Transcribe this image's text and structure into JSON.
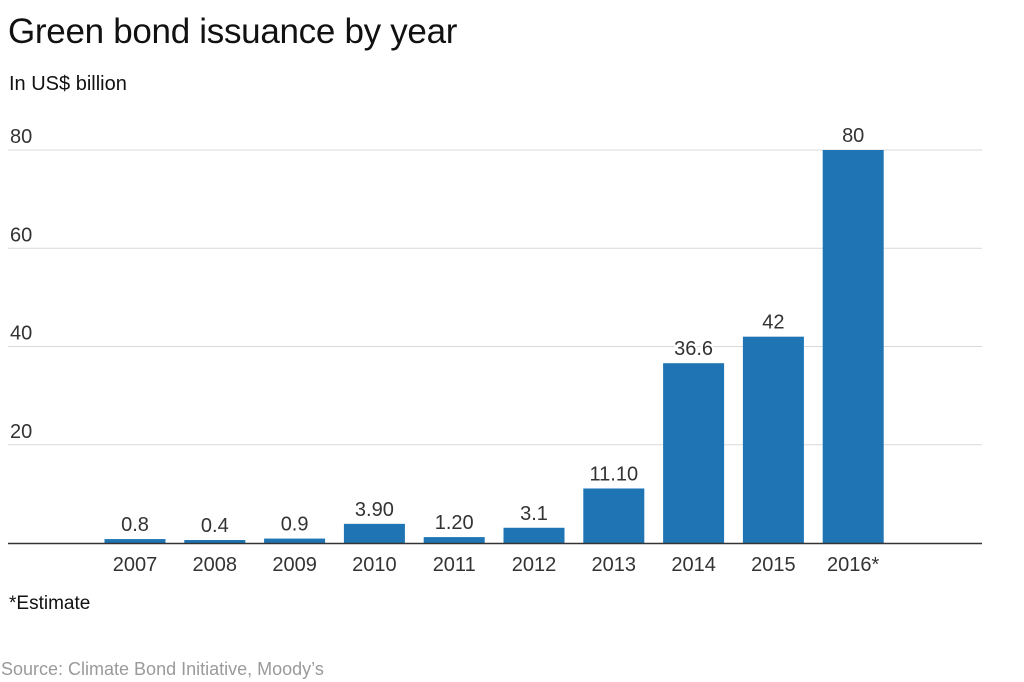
{
  "header": {
    "title": "Green bond issuance by year",
    "subtitle": "In US$ billion"
  },
  "footer": {
    "footnote": "*Estimate",
    "source": "Source: Climate Bond Initiative, Moody’s"
  },
  "colors": {
    "bar": "#1f74b4",
    "gridline": "#d9d9d9",
    "baseline": "#333333"
  },
  "chart_data": {
    "type": "bar",
    "title": "Green bond issuance by year",
    "subtitle": "In US$ billion",
    "xlabel": "",
    "ylabel": "",
    "categories": [
      "2007",
      "2008",
      "2009",
      "2010",
      "2011",
      "2012",
      "2013",
      "2014",
      "2015",
      "2016*"
    ],
    "values": [
      0.8,
      0.4,
      0.9,
      3.9,
      1.2,
      3.1,
      11.1,
      36.6,
      42,
      80
    ],
    "data_labels": [
      "0.8",
      "0.4",
      "0.9",
      "3.90",
      "1.20",
      "3.1",
      "11.10",
      "36.6",
      "42",
      "80"
    ],
    "ylim": [
      0,
      80
    ],
    "yticks": [
      "20",
      "40",
      "60",
      "80"
    ],
    "ytick_values": [
      20,
      40,
      60,
      80
    ],
    "grid": true,
    "legend": "none"
  }
}
